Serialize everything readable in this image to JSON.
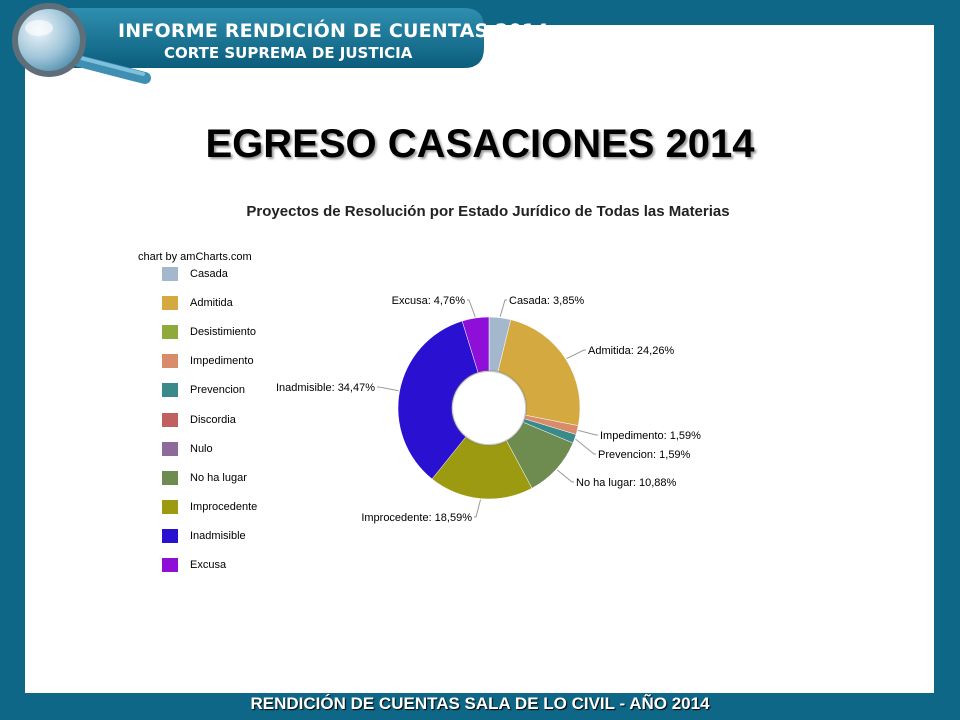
{
  "header": {
    "title": "INFORME RENDICIÓN DE CUENTAS 2014",
    "subtitle": "CORTE SUPREMA DE JUSTICIA"
  },
  "main_title": "EGRESO CASACIONES 2014",
  "credit": "chart by amCharts.com",
  "footer": "RENDICIÓN DE CUENTAS SALA DE LO CIVIL - AÑO 2014",
  "colors": {
    "background": "#0e6786",
    "banner": "#0e6786"
  },
  "chart_data": {
    "type": "pie",
    "title": "Proyectos de Resolución por Estado Jurídico de Todas las Materias",
    "donut": true,
    "legend_position": "left",
    "slices": [
      {
        "name": "Casada",
        "value": 3.85,
        "label": "Casada: 3,85%",
        "color": "#a3b8cc"
      },
      {
        "name": "Admitida",
        "value": 24.26,
        "label": "Admitida: 24,26%",
        "color": "#d4a93f"
      },
      {
        "name": "Desistimiento",
        "value": 0,
        "label": "",
        "color": "#8faa3a"
      },
      {
        "name": "Impedimento",
        "value": 1.59,
        "label": "Impedimento: 1,59%",
        "color": "#d98c6a"
      },
      {
        "name": "Prevencion",
        "value": 1.59,
        "label": "Prevencion: 1,59%",
        "color": "#3a8a8c"
      },
      {
        "name": "Discordia",
        "value": 0,
        "label": "",
        "color": "#c06060"
      },
      {
        "name": "Nulo",
        "value": 0,
        "label": "",
        "color": "#8e6a9a"
      },
      {
        "name": "No ha lugar",
        "value": 10.88,
        "label": "No ha lugar: 10,88%",
        "color": "#6e8c50"
      },
      {
        "name": "Improcedente",
        "value": 18.59,
        "label": "Improcedente: 18,59%",
        "color": "#9c9a10"
      },
      {
        "name": "Inadmisible",
        "value": 34.47,
        "label": "Inadmisible: 34,47%",
        "color": "#2a10d0"
      },
      {
        "name": "Excusa",
        "value": 4.76,
        "label": "Excusa: 4,76%",
        "color": "#8e10d8"
      }
    ]
  }
}
